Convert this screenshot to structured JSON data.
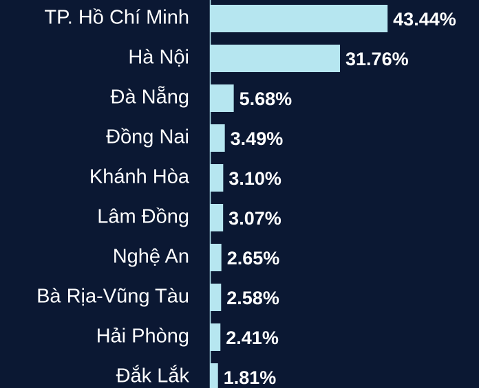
{
  "chart_data": {
    "type": "bar",
    "orientation": "horizontal",
    "categories": [
      "TP. Hồ Chí Minh",
      "Hà Nội",
      "Đà Nẵng",
      "Đồng Nai",
      "Khánh Hòa",
      "Lâm Đồng",
      "Nghệ An",
      "Bà Rịa-Vũng Tàu",
      "Hải Phòng",
      "Đắk Lắk"
    ],
    "values": [
      43.44,
      31.76,
      5.68,
      3.49,
      3.1,
      3.07,
      2.65,
      2.58,
      2.41,
      1.81
    ],
    "value_labels": [
      "43.44%",
      "31.76%",
      "5.68%",
      "3.49%",
      "3.10%",
      "3.07%",
      "2.65%",
      "2.58%",
      "2.41%",
      "1.81%"
    ],
    "color": "#b6e6f0"
  }
}
